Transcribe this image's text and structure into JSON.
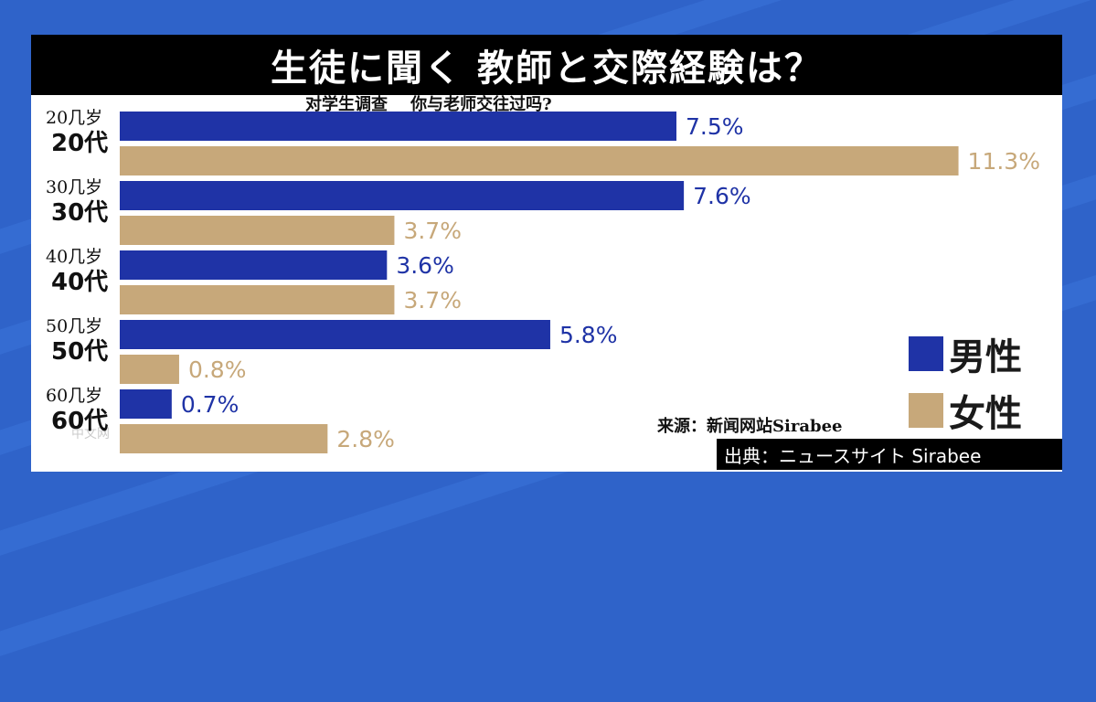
{
  "title": "生徒に聞く 教師と交際経験は？",
  "subtitle": "对学生调查    你与老师交往过吗?",
  "colors": {
    "male": "#1f33a6",
    "female": "#c7a87a",
    "value_male": "#1f33a6",
    "value_female": "#c7a87a"
  },
  "legend": {
    "male": "男性",
    "female": "女性"
  },
  "source_cn": "来源：新闻网站Sirabee",
  "source_jp": "出典：ニュースサイト Sirabee",
  "watermark": "中文网",
  "chart_data": {
    "type": "bar",
    "orientation": "horizontal",
    "categories": [
      "20代",
      "30代",
      "40代",
      "50代",
      "60代"
    ],
    "categories_cn": [
      "20几岁",
      "30几岁",
      "40几岁",
      "50几岁",
      "60几岁"
    ],
    "series": [
      {
        "name": "男性",
        "values": [
          7.5,
          7.6,
          3.6,
          5.8,
          0.7
        ],
        "labels": [
          "7.5%",
          "7.6%",
          "3.6%",
          "5.8%",
          "0.7%"
        ]
      },
      {
        "name": "女性",
        "values": [
          11.3,
          3.7,
          3.7,
          0.8,
          2.8
        ],
        "labels": [
          "11.3%",
          "3.7%",
          "3.7%",
          "0.8%",
          "2.8%"
        ]
      }
    ],
    "unit": "%",
    "grid": false,
    "legend_position": "bottom-right"
  }
}
